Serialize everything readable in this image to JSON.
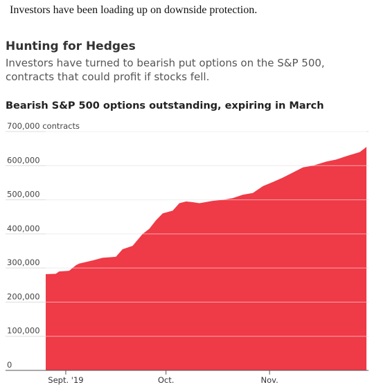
{
  "article": {
    "caption": "Investors have been loading up on downside protection.",
    "title": "Hunting for Hedges",
    "subtitle": "Investors have turned to bearish put options on the S&P 500, contracts that could profit if stocks fell."
  },
  "chart_data": {
    "type": "area",
    "title": "Bearish S&P 500 options outstanding, expiring in March",
    "ylabel_unit": "contracts",
    "ylim": [
      0,
      700000
    ],
    "yticks": [
      0,
      100000,
      200000,
      300000,
      400000,
      500000,
      600000,
      700000
    ],
    "ytick_labels": [
      "0",
      "100,000",
      "200,000",
      "300,000",
      "400,000",
      "500,000",
      "600,000",
      "700,000 contracts"
    ],
    "xlim": [
      "2019-08-26",
      "2019-11-30"
    ],
    "xticks": [
      {
        "label": "Sept. '19",
        "date": "2019-09-01"
      },
      {
        "label": "Oct.",
        "date": "2019-10-01"
      },
      {
        "label": "Nov.",
        "date": "2019-11-01"
      }
    ],
    "grid": true,
    "area_color": "#ef3a47",
    "series": [
      {
        "x": [
          "2019-08-26",
          "2019-08-29",
          "2019-08-30",
          "2019-09-02",
          "2019-09-04",
          "2019-09-05",
          "2019-09-09",
          "2019-09-12",
          "2019-09-16",
          "2019-09-18",
          "2019-09-21",
          "2019-09-24",
          "2019-09-26",
          "2019-09-28",
          "2019-09-30",
          "2019-10-03",
          "2019-10-05",
          "2019-10-07",
          "2019-10-09",
          "2019-10-11",
          "2019-10-15",
          "2019-10-18",
          "2019-10-21",
          "2019-10-24",
          "2019-10-27",
          "2019-10-30",
          "2019-11-02",
          "2019-11-05",
          "2019-11-08",
          "2019-11-11",
          "2019-11-14",
          "2019-11-18",
          "2019-11-21",
          "2019-11-24",
          "2019-11-28",
          "2019-11-30"
        ],
        "y": [
          282000,
          283000,
          290000,
          292000,
          308000,
          313000,
          322000,
          330000,
          333000,
          355000,
          365000,
          400000,
          415000,
          440000,
          460000,
          468000,
          490000,
          495000,
          493000,
          490000,
          497000,
          500000,
          505000,
          515000,
          520000,
          540000,
          552000,
          565000,
          580000,
          595000,
          600000,
          612000,
          618000,
          628000,
          640000,
          655000
        ]
      }
    ]
  }
}
